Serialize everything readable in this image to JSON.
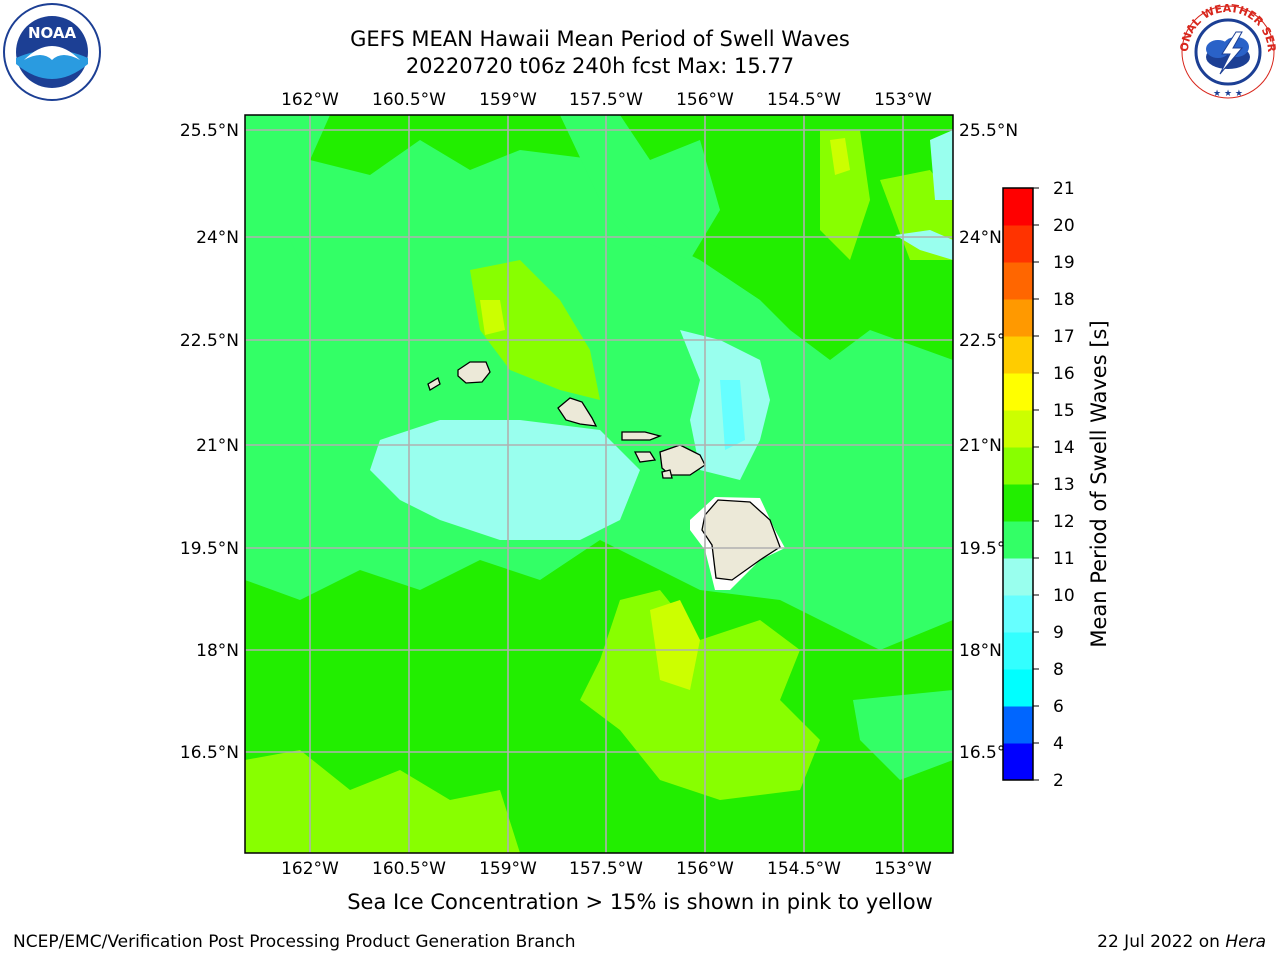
{
  "header": {
    "title_line1": "GEFS MEAN Hawaii Mean Period of Swell Waves",
    "title_line2": "20220720 t06z 240h fcst   Max: 15.77"
  },
  "logos": {
    "left": {
      "name": "noaa-logo",
      "text": "NOAA"
    },
    "right": {
      "name": "nws-logo",
      "text": "NATIONAL WEATHER SERVICE"
    }
  },
  "map": {
    "lon_labels": [
      "162°W",
      "160.5°W",
      "159°W",
      "157.5°W",
      "156°W",
      "154.5°W",
      "153°W"
    ],
    "lat_labels": [
      "25.5°N",
      "24°N",
      "22.5°N",
      "21°N",
      "19.5°N",
      "18°N",
      "16.5°N"
    ],
    "lat_labels_right": [
      "25.5°N",
      "24°N",
      "22.5°N",
      "21°N",
      "19.5°N",
      "18°N",
      "16.5°N"
    ],
    "colors": {
      "land": "#ece9d8",
      "grid": "#b0b0b0"
    }
  },
  "colorbar": {
    "label": "Mean Period of Swell Waves [s]",
    "ticks": [
      "2",
      "4",
      "6",
      "8",
      "9",
      "10",
      "11",
      "12",
      "13",
      "14",
      "15",
      "16",
      "17",
      "18",
      "19",
      "20",
      "21"
    ],
    "colors": [
      "#0000ff",
      "#0066ff",
      "#00ffff",
      "#33ffff",
      "#66ffff",
      "#99ffee",
      "#33ff66",
      "#22ee00",
      "#88ff00",
      "#ccff00",
      "#ffff00",
      "#ffcc00",
      "#ff9900",
      "#ff6600",
      "#ff3300",
      "#ff0000"
    ]
  },
  "caption": "Sea Ice Concentration > 15% is shown in pink to yellow",
  "footer": {
    "left": "NCEP/EMC/Verification Post Processing Product Generation Branch",
    "right_date": "22 Jul 2022 on ",
    "right_host": "Hera"
  }
}
